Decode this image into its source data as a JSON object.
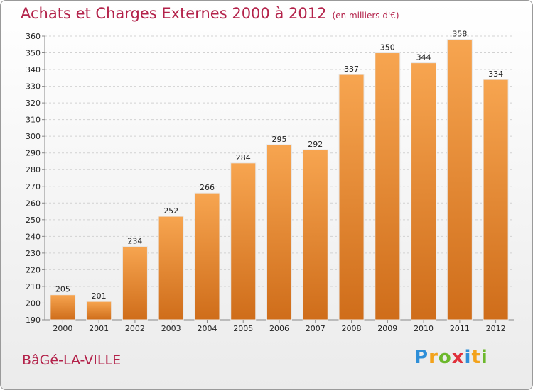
{
  "header": {
    "title": "Achats et Charges Externes 2000 à 2012",
    "unit": "(en milliers d'€)"
  },
  "footer": {
    "city": "BâGé-LA-VILLE",
    "logo": {
      "letters": [
        "P",
        "r",
        "o",
        "x",
        "i",
        "t",
        "i"
      ],
      "colors": [
        "#2f8fd8",
        "#f3a21b",
        "#6cb82c",
        "#e0323c",
        "#2f8fd8",
        "#f3a21b",
        "#6cb82c"
      ]
    }
  },
  "colors": {
    "bar_top": "#f7a550",
    "bar_bottom": "#cf6d1a",
    "title": "#b3224a"
  },
  "chart_data": {
    "type": "bar",
    "title": "Achats et Charges Externes 2000 à 2012",
    "categories": [
      "2000",
      "2001",
      "2002",
      "2003",
      "2004",
      "2005",
      "2006",
      "2007",
      "2008",
      "2009",
      "2010",
      "2011",
      "2012"
    ],
    "values": [
      205,
      201,
      234,
      252,
      266,
      284,
      295,
      292,
      337,
      350,
      344,
      358,
      334
    ],
    "ylim": [
      190,
      360
    ],
    "yticks": [
      190,
      200,
      210,
      220,
      230,
      240,
      250,
      260,
      270,
      280,
      290,
      300,
      310,
      320,
      330,
      340,
      350,
      360
    ],
    "grid": true,
    "xlabel": "",
    "ylabel": ""
  }
}
